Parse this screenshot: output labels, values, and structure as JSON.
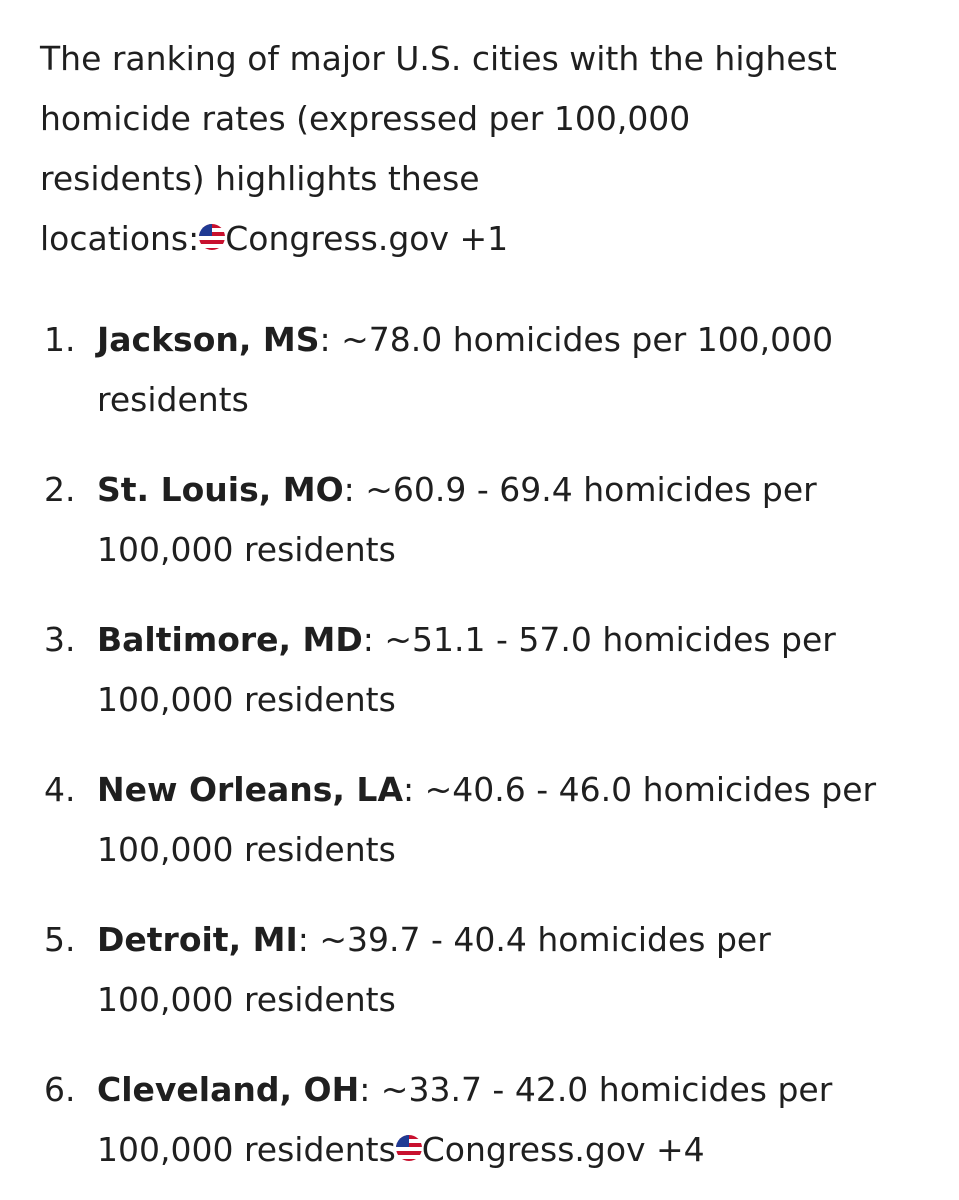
{
  "intro": {
    "lines": [
      "The ranking of major U.S. cities with the highest",
      "homicide rates (expressed per 100,000",
      "residents) highlights these",
      "locations:"
    ],
    "chip": "Congress.gov +1"
  },
  "list": [
    {
      "marker": "1.",
      "city": "Jackson, MS",
      "lines": [
        ": ~78.0 homicides per 100,000",
        "residents"
      ]
    },
    {
      "marker": "2.",
      "city": "St. Louis, MO",
      "lines": [
        ": ~60.9 - 69.4 homicides per",
        "100,000 residents"
      ]
    },
    {
      "marker": "3.",
      "city": "Baltimore, MD",
      "lines": [
        ": ~51.1 - 57.0 homicides per",
        "100,000 residents"
      ]
    },
    {
      "marker": "4.",
      "city": "New Orleans, LA",
      "lines": [
        ": ~40.6 - 46.0 homicides per",
        "100,000 residents"
      ]
    },
    {
      "marker": "5.",
      "city": "Detroit, MI",
      "lines": [
        ": ~39.7 - 40.4 homicides per",
        "100,000 residents"
      ]
    },
    {
      "marker": "6.",
      "city": "Cleveland, OH",
      "lines": [
        ": ~33.7 - 42.0 homicides per",
        "100,000 residents"
      ],
      "chip": "Congress.gov +4"
    }
  ]
}
